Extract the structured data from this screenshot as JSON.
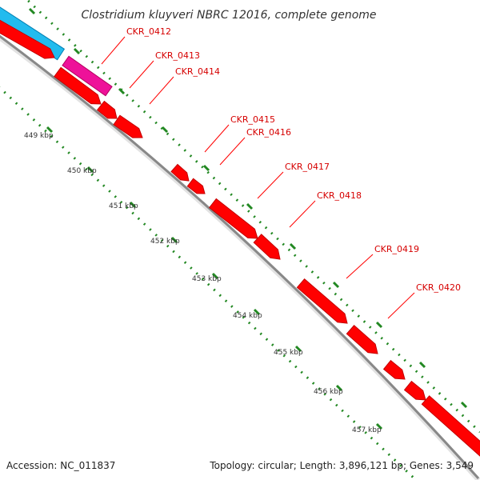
{
  "title": "Clostridium kluyveri NBRC 12016, complete genome",
  "footer": {
    "accession": "Accession: NC_011837",
    "topology": "Topology: circular; Length: 3,896,121 bp; Genes: 3,549"
  },
  "genes": [
    {
      "label": "CKR_0412",
      "color": "#ff0000"
    },
    {
      "label": "CKR_0413",
      "color": "#ff0000"
    },
    {
      "label": "CKR_0414",
      "color": "#ff0000"
    },
    {
      "label": "CKR_0415",
      "color": "#ff0000"
    },
    {
      "label": "CKR_0416",
      "color": "#ff0000"
    },
    {
      "label": "CKR_0417",
      "color": "#ff0000"
    },
    {
      "label": "CKR_0418",
      "color": "#ff0000"
    },
    {
      "label": "CKR_0419",
      "color": "#ff0000"
    },
    {
      "label": "CKR_0420",
      "color": "#ff0000"
    }
  ],
  "scale_ticks": [
    "449 kbp",
    "450 kbp",
    "451 kbp",
    "452 kbp",
    "453 kbp",
    "454 kbp",
    "455 kbp",
    "456 kbp",
    "457 kbp"
  ],
  "colors": {
    "backbone": "#888888",
    "cds_feature": "#ff0000",
    "cyan_feature": "#22bbee",
    "magenta_feature": "#ee1199",
    "gc_dots": "#228822",
    "label_line": "#ff0000"
  }
}
